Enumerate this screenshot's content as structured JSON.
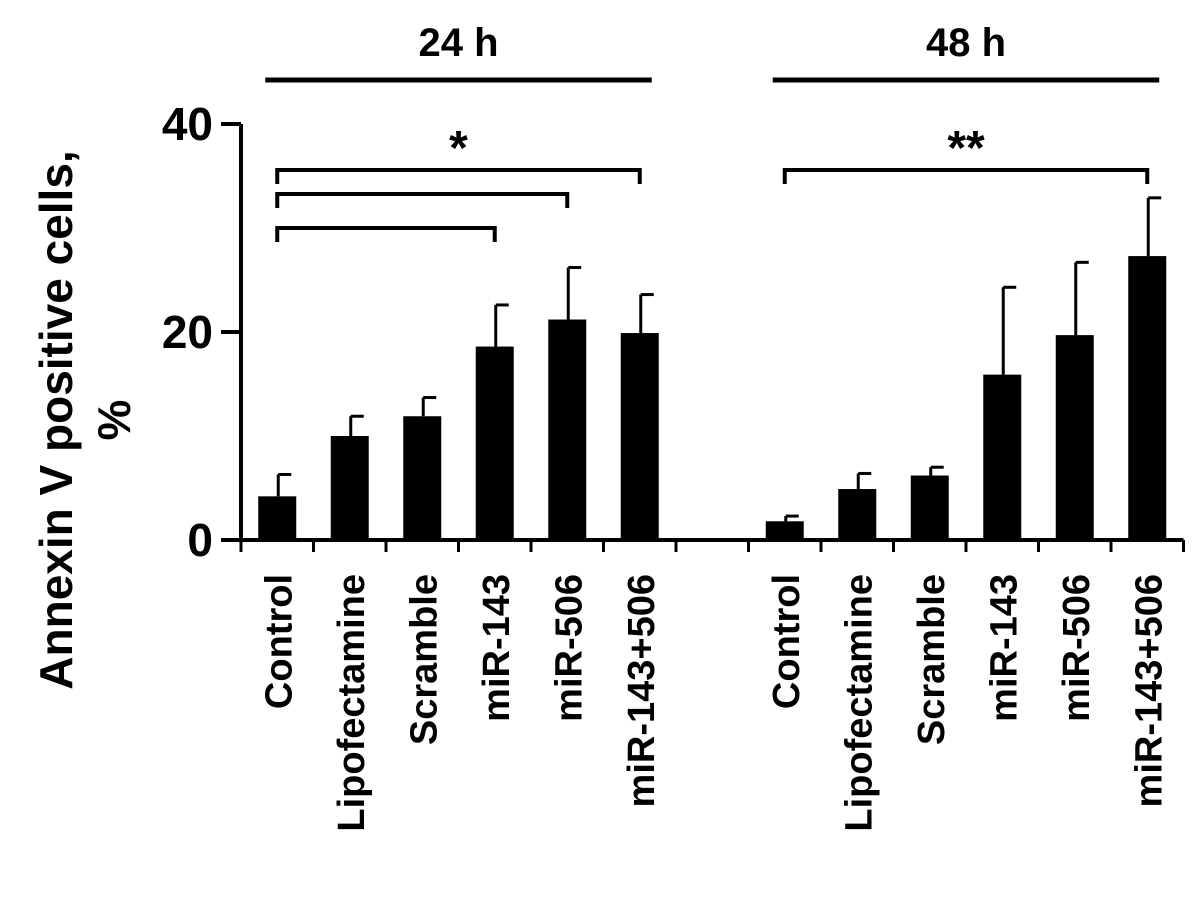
{
  "chart_data": {
    "type": "bar",
    "ylabel_lines": [
      "Annexin V positive cells,",
      "%"
    ],
    "ylim": [
      0,
      40
    ],
    "yticks": [
      "0",
      "20",
      "40"
    ],
    "grid": false,
    "color": "#000000",
    "groups": [
      {
        "name": "24 h",
        "categories": [
          "Control",
          "Lipofectamine",
          "Scramble",
          "miR-143",
          "miR-506",
          "miR-143+506"
        ],
        "values": [
          4.2,
          10.0,
          11.9,
          18.6,
          21.2,
          19.9
        ],
        "errors": [
          2.1,
          1.9,
          1.8,
          4.0,
          5.0,
          3.7
        ]
      },
      {
        "name": "48 h",
        "categories": [
          "Control",
          "Lipofectamine",
          "Scramble",
          "miR-143",
          "miR-506",
          "miR-143+506"
        ],
        "values": [
          1.8,
          4.9,
          6.2,
          15.9,
          19.7,
          27.3
        ],
        "errors": [
          0.5,
          1.5,
          0.8,
          8.4,
          7.0,
          5.6
        ]
      }
    ],
    "significance": [
      {
        "label": "*",
        "group": 0,
        "from": 0,
        "to": [
          3,
          4,
          5
        ]
      },
      {
        "label": "**",
        "group": 1,
        "from": 0,
        "to": [
          5
        ]
      }
    ]
  }
}
